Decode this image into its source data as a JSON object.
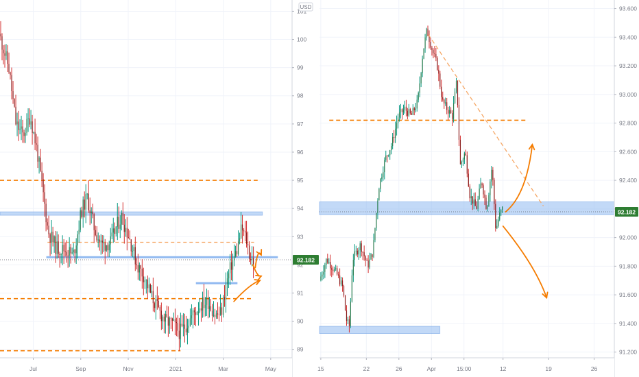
{
  "chart_data": [
    {
      "type": "candlestick",
      "panel": "left",
      "currency_label": "USD",
      "y_ticks": [
        "89",
        "90",
        "91",
        "92",
        "93",
        "94",
        "95",
        "96",
        "97",
        "98",
        "99",
        "100",
        "101"
      ],
      "ylim": [
        88.7,
        101.4
      ],
      "x_ticks": [
        {
          "label": "Jul",
          "x": 1.0
        },
        {
          "label": "Sep",
          "x": 3.0
        },
        {
          "label": "Nov",
          "x": 5.0
        },
        {
          "label": "2021",
          "x": 7.0
        },
        {
          "label": "Mar",
          "x": 9.0
        },
        {
          "label": "May",
          "x": 11.0
        }
      ],
      "xlim": [
        -0.4,
        11.9
      ],
      "price_label": "92.182",
      "last_price": 92.18,
      "candle_count": 185,
      "price_path": [
        [
          -0.4,
          100.2
        ],
        [
          0.0,
          99.0
        ],
        [
          0.3,
          97.0
        ],
        [
          0.6,
          96.6
        ],
        [
          0.9,
          97.3
        ],
        [
          1.2,
          96.0
        ],
        [
          1.45,
          94.5
        ],
        [
          1.65,
          93.2
        ],
        [
          2.0,
          92.6
        ],
        [
          2.5,
          92.5
        ],
        [
          2.7,
          92.3
        ],
        [
          2.85,
          92.9
        ],
        [
          3.05,
          93.9
        ],
        [
          3.3,
          94.4
        ],
        [
          3.6,
          93.3
        ],
        [
          3.9,
          92.7
        ],
        [
          4.3,
          92.8
        ],
        [
          4.55,
          93.4
        ],
        [
          4.75,
          93.7
        ],
        [
          5.1,
          92.9
        ],
        [
          5.4,
          92.0
        ],
        [
          5.7,
          91.6
        ],
        [
          6.0,
          90.9
        ],
        [
          6.3,
          90.4
        ],
        [
          6.6,
          90.0
        ],
        [
          6.9,
          89.9
        ],
        [
          7.2,
          89.6
        ],
        [
          7.5,
          89.9
        ],
        [
          7.8,
          90.3
        ],
        [
          8.1,
          90.6
        ],
        [
          8.4,
          90.7
        ],
        [
          8.7,
          90.2
        ],
        [
          8.95,
          90.3
        ],
        [
          9.15,
          91.3
        ],
        [
          9.4,
          92.1
        ],
        [
          9.6,
          92.5
        ],
        [
          9.8,
          93.3
        ],
        [
          10.0,
          92.9
        ],
        [
          10.15,
          92.3
        ],
        [
          10.3,
          92.15
        ]
      ],
      "horizontal_levels": [
        {
          "kind": "zone",
          "y_from": 93.76,
          "y_to": 93.88,
          "x_from": -0.4,
          "x_to": 10.65
        },
        {
          "kind": "solid",
          "y": 92.27,
          "x_from": 1.55,
          "x_to": 11.3
        },
        {
          "kind": "solid",
          "y": 91.35,
          "x_from": 7.85,
          "x_to": 9.6
        },
        {
          "kind": "dashed",
          "y": 95.0,
          "x_from": -0.4,
          "x_to": 10.45
        },
        {
          "kind": "dashed-light",
          "y": 92.8,
          "x_from": 1.6,
          "x_to": 10.3
        },
        {
          "kind": "dashed",
          "y": 90.8,
          "x_from": -0.4,
          "x_to": 10.2
        },
        {
          "kind": "dashed",
          "y": 88.95,
          "x_from": -0.4,
          "x_to": 7.2
        }
      ],
      "projections": [
        {
          "points": [
            [
              10.35,
              91.9
            ],
            [
              10.45,
              92.6
            ],
            [
              10.6,
              92.35
            ]
          ]
        },
        {
          "points": [
            [
              9.45,
              90.7
            ],
            [
              10.1,
              91.3
            ],
            [
              10.55,
              91.45
            ]
          ]
        },
        {
          "points": [
            [
              10.25,
              92.0
            ],
            [
              10.45,
              91.55
            ],
            [
              10.6,
              91.6
            ]
          ]
        }
      ]
    },
    {
      "type": "candlestick",
      "panel": "right",
      "y_ticks": [
        "91.200",
        "91.400",
        "91.600",
        "91.800",
        "92.000",
        "92.200",
        "92.400",
        "92.600",
        "92.800",
        "93.000",
        "93.200",
        "93.400",
        "93.600"
      ],
      "ylim": [
        91.16,
        93.66
      ],
      "x_ticks": [
        {
          "label": "15",
          "x": 0.0
        },
        {
          "label": "22",
          "x": 7.0
        },
        {
          "label": "26",
          "x": 12.0
        },
        {
          "label": "Apr",
          "x": 17.0
        },
        {
          "label": "15:00",
          "x": 22.0
        },
        {
          "label": "12",
          "x": 28.0
        },
        {
          "label": "19",
          "x": 35.0
        },
        {
          "label": "26",
          "x": 42.0
        }
      ],
      "xlim": [
        -0.2,
        45.1
      ],
      "price_label": "92.182",
      "last_price": 92.18,
      "candle_count": 135,
      "price_path": [
        [
          -0.1,
          91.7
        ],
        [
          1.0,
          91.85
        ],
        [
          2.5,
          91.75
        ],
        [
          3.5,
          91.65
        ],
        [
          4.0,
          91.43
        ],
        [
          4.5,
          91.38
        ],
        [
          5.0,
          91.85
        ],
        [
          6.2,
          91.95
        ],
        [
          7.3,
          91.8
        ],
        [
          8.1,
          91.9
        ],
        [
          9.0,
          92.35
        ],
        [
          10.0,
          92.55
        ],
        [
          11.0,
          92.65
        ],
        [
          12.0,
          92.85
        ],
        [
          13.0,
          92.9
        ],
        [
          14.0,
          92.85
        ],
        [
          15.0,
          92.95
        ],
        [
          15.8,
          93.3
        ],
        [
          16.4,
          93.45
        ],
        [
          17.3,
          93.3
        ],
        [
          18.0,
          93.2
        ],
        [
          18.8,
          92.95
        ],
        [
          19.5,
          92.9
        ],
        [
          20.3,
          92.85
        ],
        [
          21.0,
          93.1
        ],
        [
          21.5,
          92.5
        ],
        [
          22.3,
          92.6
        ],
        [
          23.0,
          92.3
        ],
        [
          24.0,
          92.2
        ],
        [
          24.8,
          92.4
        ],
        [
          25.6,
          92.2
        ],
        [
          26.4,
          92.5
        ],
        [
          27.0,
          92.05
        ],
        [
          27.5,
          92.15
        ],
        [
          28.0,
          92.2
        ]
      ],
      "horizontal_levels": [
        {
          "kind": "zone",
          "y_from": 92.16,
          "y_to": 92.25,
          "x_from": -0.2,
          "x_to": 45.1
        },
        {
          "kind": "zone",
          "y_from": 91.33,
          "y_to": 91.38,
          "x_from": -0.2,
          "x_to": 18.3
        },
        {
          "kind": "dashed",
          "y": 92.82,
          "x_from": 1.3,
          "x_to": 31.5
        }
      ],
      "trendlines": [
        {
          "kind": "dashed",
          "points": [
            [
              16.5,
              93.42
            ],
            [
              34.2,
              92.22
            ]
          ]
        }
      ],
      "projections": [
        {
          "points": [
            [
              28.4,
              92.18
            ],
            [
              31.6,
              92.3
            ],
            [
              32.5,
              92.65
            ]
          ]
        },
        {
          "points": [
            [
              28.0,
              92.08
            ],
            [
              33.0,
              91.8
            ],
            [
              34.7,
              91.58
            ]
          ]
        }
      ]
    }
  ]
}
